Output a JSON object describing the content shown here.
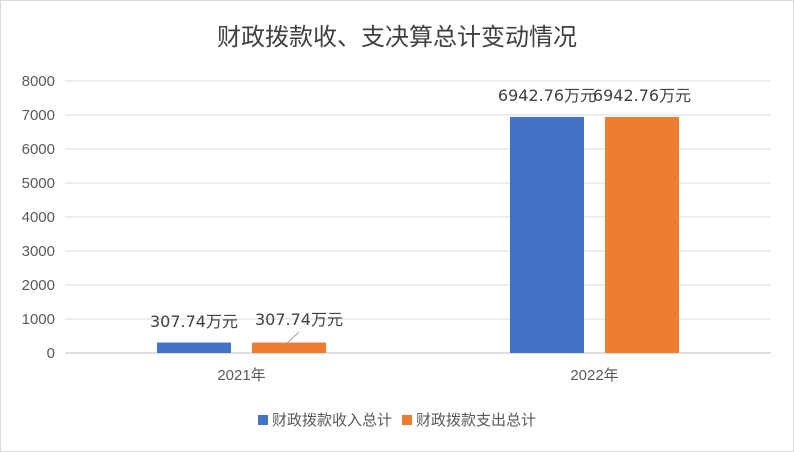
{
  "chart_data": {
    "type": "bar",
    "title": "财政拨款收、支决算总计变动情况",
    "categories": [
      "2021年",
      "2022年"
    ],
    "series": [
      {
        "name": "财政拨款收入总计",
        "color": "#4472c4",
        "values": [
          307.74,
          6942.76
        ],
        "labels": [
          "307.74万元",
          "6942.76万元"
        ]
      },
      {
        "name": "财政拨款支出总计",
        "color": "#ed7d31",
        "values": [
          307.74,
          6942.76
        ],
        "labels": [
          "307.74万元",
          "6942.76万元"
        ]
      }
    ],
    "ylim": [
      0,
      8000
    ],
    "yticks": [
      0,
      1000,
      2000,
      3000,
      4000,
      5000,
      6000,
      7000,
      8000
    ],
    "grid": true,
    "legend": "bottom"
  }
}
